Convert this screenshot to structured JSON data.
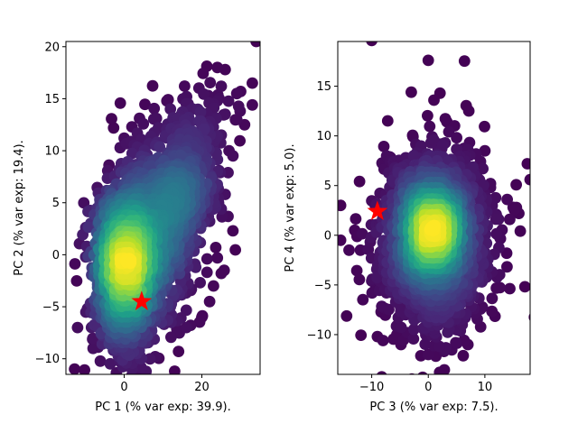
{
  "chart_data": [
    {
      "type": "scatter",
      "title": "",
      "xlabel": "PC 1 (% var exp: 39.9).",
      "ylabel": "PC 2 (% var exp: 19.4).",
      "xlim": [
        -15,
        35
      ],
      "ylim": [
        -11.5,
        20.5
      ],
      "xticks": [
        0,
        20
      ],
      "yticks": [
        -10,
        -5,
        0,
        5,
        10,
        15,
        20
      ],
      "colormap": "viridis",
      "colored_by": "point density",
      "grid": false,
      "legend": "none",
      "density_cloud": {
        "core": {
          "x": 0,
          "y": -1,
          "sx": 3.2,
          "sy": 3.6,
          "rotation_deg": 15,
          "n": 1400
        },
        "spread": {
          "x": 6,
          "y": 1.5,
          "sx": 7,
          "sy": 4.5,
          "rotation_deg": 20,
          "n": 1100
        },
        "upper_tail": {
          "x": 14,
          "y": 6,
          "sx": 6,
          "sy": 3,
          "rotation_deg": 30,
          "n": 500
        }
      },
      "outliers": [
        [
          24,
          18
        ],
        [
          26,
          17.8
        ],
        [
          25,
          16.2
        ],
        [
          29,
          15.5
        ],
        [
          30,
          15.7
        ],
        [
          33,
          16.5
        ],
        [
          33,
          14.4
        ],
        [
          34,
          20.5
        ],
        [
          23,
          14.5
        ],
        [
          26,
          13.5
        ],
        [
          29,
          13
        ],
        [
          31,
          12.5
        ],
        [
          16,
          14.5
        ],
        [
          2,
          12.3
        ],
        [
          0,
          11.2
        ],
        [
          22,
          12.8
        ],
        [
          25,
          11.5
        ],
        [
          27,
          10
        ],
        [
          28,
          9.5
        ],
        [
          24,
          8
        ],
        [
          23,
          5.6
        ],
        [
          26,
          5.8
        ],
        [
          25,
          4.4
        ],
        [
          28,
          2.3
        ],
        [
          24,
          -0.3
        ],
        [
          25,
          -1.8
        ],
        [
          23,
          -3
        ],
        [
          22,
          -4.5
        ],
        [
          20,
          -6
        ],
        [
          16,
          -7
        ],
        [
          14,
          -9.3
        ],
        [
          8,
          -9.8
        ],
        [
          2,
          -11
        ],
        [
          13,
          -11.2
        ],
        [
          -8,
          -9
        ],
        [
          -12,
          -7
        ]
      ],
      "highlight": {
        "x": 4.5,
        "y": -4.5,
        "marker": "star",
        "color": "#ff0000"
      }
    },
    {
      "type": "scatter",
      "title": "",
      "xlabel": "PC 3 (% var exp: 7.5).",
      "ylabel": "PC 4 (% var exp: 5.0).",
      "xlim": [
        -16,
        18
      ],
      "ylim": [
        -14,
        19.5
      ],
      "xticks": [
        -10,
        0,
        10
      ],
      "yticks": [
        -10,
        -5,
        0,
        5,
        10,
        15
      ],
      "colormap": "viridis",
      "colored_by": "point density",
      "grid": false,
      "legend": "none",
      "density_cloud": {
        "core": {
          "x": 0.5,
          "y": 0.5,
          "sx": 2.2,
          "sy": 2.3,
          "rotation_deg": 0,
          "n": 1400
        },
        "spread": {
          "x": 1,
          "y": 0,
          "sx": 4.2,
          "sy": 4.2,
          "rotation_deg": 0,
          "n": 1200
        },
        "halo": {
          "x": 1,
          "y": -1,
          "sx": 5.5,
          "sy": 4.8,
          "rotation_deg": 0,
          "n": 500
        }
      },
      "outliers": [
        [
          -10,
          19.6
        ],
        [
          0,
          17.6
        ],
        [
          -3,
          14.4
        ],
        [
          1,
          13.6
        ],
        [
          -6,
          7
        ],
        [
          -4,
          7.8
        ],
        [
          -2,
          8.3
        ],
        [
          3,
          9.3
        ],
        [
          7,
          8.6
        ],
        [
          10,
          8.5
        ],
        [
          9,
          6.6
        ],
        [
          11,
          5.2
        ],
        [
          11,
          4.8
        ],
        [
          17.5,
          7.2
        ],
        [
          18,
          5.6
        ],
        [
          15,
          2.8
        ],
        [
          16,
          2.2
        ],
        [
          12,
          2.1
        ],
        [
          10,
          2
        ],
        [
          -15.5,
          3
        ],
        [
          -13,
          0.5
        ],
        [
          -14,
          -1.5
        ],
        [
          -12,
          -1.5
        ],
        [
          -15.5,
          -0.5
        ],
        [
          -10,
          -4.6
        ],
        [
          -9,
          -10.2
        ],
        [
          -8,
          -10.6
        ],
        [
          -5,
          -10.6
        ],
        [
          0,
          -12
        ],
        [
          -1,
          -14.3
        ],
        [
          2,
          -13.8
        ],
        [
          3,
          -11.5
        ],
        [
          7,
          -11
        ],
        [
          -4,
          -8
        ],
        [
          6,
          -9
        ]
      ],
      "highlight": {
        "x": -9,
        "y": 2.4,
        "marker": "star",
        "color": "#ff0000"
      }
    }
  ]
}
